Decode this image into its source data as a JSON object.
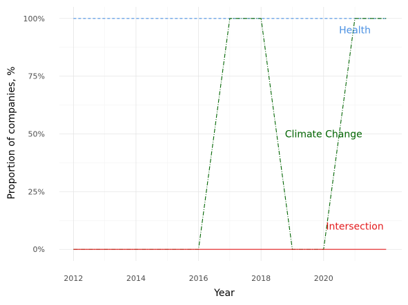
{
  "chart_data": {
    "type": "line",
    "xlabel": "Year",
    "ylabel": "Proportion of companies, %",
    "xlim": [
      2011.55,
      2022.5
    ],
    "ylim": [
      -0.05,
      1.05
    ],
    "x_ticks": [
      2012,
      2014,
      2016,
      2018,
      2020
    ],
    "x_tick_labels": [
      "2012",
      "2014",
      "2016",
      "2018",
      "2020"
    ],
    "y_ticks": [
      0,
      0.25,
      0.5,
      0.75,
      1.0
    ],
    "y_tick_labels": [
      "0%",
      "25%",
      "50%",
      "75%",
      "100%"
    ],
    "grid": true,
    "legend": "none",
    "series": [
      {
        "name": "Health",
        "color": "#4a90e2",
        "dash": "dashed",
        "x": [
          2012,
          2013,
          2014,
          2015,
          2016,
          2017,
          2018,
          2019,
          2020,
          2021,
          2022
        ],
        "values": [
          1,
          1,
          1,
          1,
          1,
          1,
          1,
          1,
          1,
          1,
          1
        ],
        "label_at": [
          2021.0,
          0.95
        ]
      },
      {
        "name": "Climate Change",
        "color": "#006400",
        "dash": "dashdot",
        "x": [
          2012,
          2013,
          2014,
          2015,
          2016,
          2017,
          2018,
          2019,
          2020,
          2021,
          2022
        ],
        "values": [
          0,
          0,
          0,
          0,
          0,
          1,
          1,
          0,
          0,
          1,
          1
        ],
        "label_at": [
          2020.0,
          0.5
        ]
      },
      {
        "name": "Intersection",
        "color": "#e31a1c",
        "dash": "solid",
        "x": [
          2012,
          2013,
          2014,
          2015,
          2016,
          2017,
          2018,
          2019,
          2020,
          2021,
          2022
        ],
        "values": [
          0,
          0,
          0,
          0,
          0,
          0,
          0,
          0,
          0,
          0,
          0
        ],
        "label_at": [
          2021.0,
          0.1
        ]
      }
    ]
  }
}
